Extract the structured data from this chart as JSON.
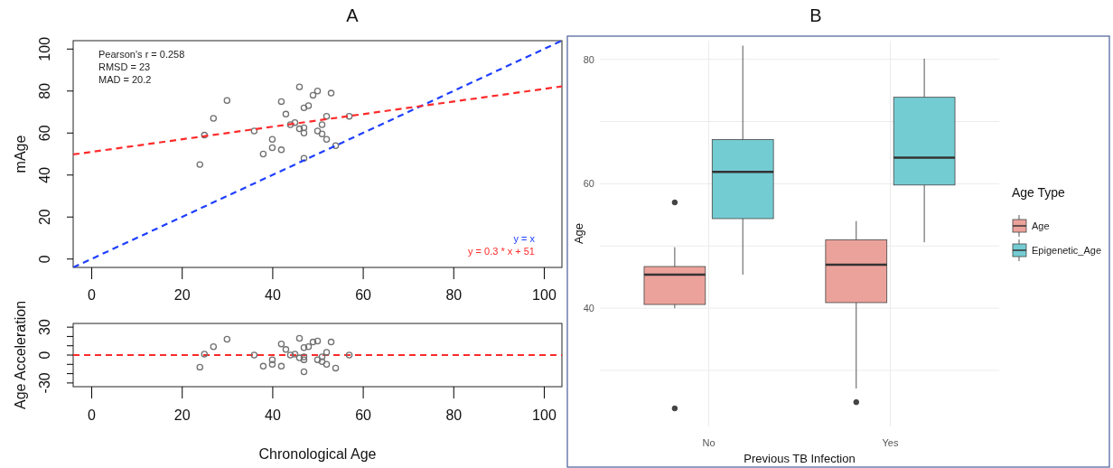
{
  "chart_data": [
    {
      "type": "scatter",
      "title": "A",
      "ylabel": "mAge",
      "xlim": [
        -4,
        104
      ],
      "ylim": [
        -4,
        104
      ],
      "xticks": [
        0,
        20,
        40,
        60,
        80,
        100
      ],
      "yticks": [
        0,
        20,
        40,
        60,
        80,
        100
      ],
      "legend": "bottom right",
      "annotations": [
        "Pearson's r = 0.258",
        "RMSD = 23",
        "MAD = 20.2"
      ],
      "series": [
        {
          "color": "#707070",
          "marker": "circle",
          "x": [
            24,
            25,
            27,
            30,
            36,
            38,
            40,
            40,
            42,
            42,
            43,
            44,
            45,
            46,
            46,
            47,
            47,
            47,
            47,
            48,
            49,
            50,
            50,
            51,
            51,
            52,
            52,
            53,
            54,
            57
          ],
          "values": [
            45,
            59,
            67,
            75.5,
            61,
            50,
            57,
            53,
            75,
            52,
            69,
            64,
            65,
            82,
            62,
            72,
            62.5,
            60,
            48,
            73,
            78,
            80,
            61,
            64,
            59.6,
            68,
            57,
            79,
            54,
            68
          ]
        },
        {
          "type": "line",
          "name": "y = x",
          "color": "#1f3fff",
          "line_style": "dashed",
          "x": [
            -4,
            104
          ],
          "values": [
            -4,
            104
          ]
        },
        {
          "type": "line",
          "name": "y = 0.3 * x + 51",
          "color": "#ff2a2a",
          "line_style": "dashed",
          "x": [
            -4,
            104
          ],
          "values": [
            49.8,
            82.2
          ]
        }
      ]
    },
    {
      "type": "scatter",
      "xlabel": "Chronological Age",
      "ylabel": "Age Acceleration",
      "xlim": [
        -4,
        104
      ],
      "ylim": [
        -34,
        34
      ],
      "xticks": [
        0,
        20,
        40,
        60,
        80,
        100
      ],
      "yticks": [
        -30,
        {
          "value": -20,
          "label": null
        },
        {
          "value": -10,
          "label": null
        },
        0,
        {
          "value": 10,
          "label": null
        },
        {
          "value": 20,
          "label": null
        },
        30
      ],
      "marker": "circle",
      "series": [
        {
          "color": "#707070",
          "x": [
            24,
            25,
            27,
            30,
            36,
            38,
            40,
            40,
            42,
            42,
            43,
            44,
            45,
            46,
            46,
            47,
            47,
            47,
            47,
            48,
            49,
            50,
            50,
            51,
            51,
            52,
            52,
            53,
            54,
            57
          ],
          "values": [
            -13,
            1,
            9,
            17,
            0,
            -12,
            -5,
            -10,
            12,
            -12,
            6,
            0,
            1,
            18,
            -3,
            8,
            -2,
            -5,
            -18,
            9,
            14,
            15,
            -5,
            -2,
            -7,
            3,
            -10,
            14,
            -14,
            0
          ]
        }
      ],
      "ref_lines": [
        {
          "axis": "y",
          "value": 0,
          "color": "#ff2a2a",
          "line_style": "dashed"
        }
      ]
    },
    {
      "type": "box",
      "title": "B",
      "xlabel": "Previous TB Infection",
      "ylabel": "Age",
      "legend_title": "Age Type",
      "legend": "right",
      "categories": [
        "No",
        "Yes"
      ],
      "ylim": [
        21,
        83
      ],
      "yticks": [
        {
          "value": 30,
          "label": null
        },
        40,
        {
          "value": 50,
          "label": null
        },
        60,
        {
          "value": 70,
          "label": null
        },
        80
      ],
      "grid": true,
      "series": [
        {
          "name": "Age",
          "color": "#eba29b",
          "boxes": [
            {
              "low": 40,
              "q1": 40.6,
              "median": 45.4,
              "q3": 46.7,
              "high": 49.8,
              "outliers": [
                57,
                23.9
              ]
            },
            {
              "low": 27.1,
              "q1": 40.9,
              "median": 47,
              "q3": 51,
              "high": 54,
              "outliers": [
                24.9
              ]
            }
          ]
        },
        {
          "name": "Epigenetic_Age",
          "color": "#74ccd3",
          "boxes": [
            {
              "low": 45.4,
              "q1": 54.4,
              "median": 61.9,
              "q3": 67.1,
              "high": 82.2
            },
            {
              "low": 50.6,
              "q1": 59.8,
              "median": 64.2,
              "q3": 73.9,
              "high": 80.1
            }
          ]
        }
      ]
    }
  ]
}
